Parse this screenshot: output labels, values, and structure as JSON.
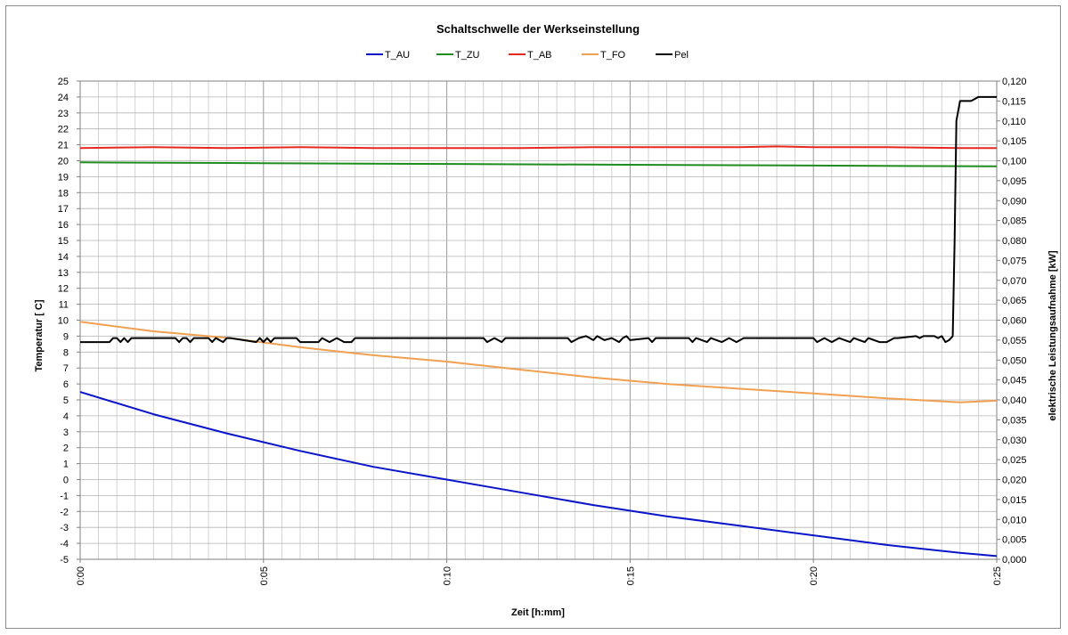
{
  "chart_data": {
    "type": "line",
    "title": "Schaltschwelle der Werkseinstellung",
    "xlabel": "Zeit [h:mm]",
    "ylabel": "Temperatur [ C]",
    "y2label": "elektrische Leistungsaufnahme  [kW]",
    "x_ticks": [
      "0:00",
      "0:05",
      "0:10",
      "0:15",
      "0:20",
      "0:25"
    ],
    "xlim_min": [
      0,
      25
    ],
    "ylim": [
      -5,
      25
    ],
    "y_ticks": [
      "-5",
      "-4",
      "-3",
      "-2",
      "-1",
      "0",
      "1",
      "2",
      "3",
      "4",
      "5",
      "6",
      "7",
      "8",
      "9",
      "10",
      "11",
      "12",
      "13",
      "14",
      "15",
      "16",
      "17",
      "18",
      "19",
      "20",
      "21",
      "22",
      "23",
      "24",
      "25"
    ],
    "y2lim": [
      0,
      0.12
    ],
    "y2_ticks": [
      "0,000",
      "0,005",
      "0,010",
      "0,015",
      "0,020",
      "0,025",
      "0,030",
      "0,035",
      "0,040",
      "0,045",
      "0,050",
      "0,055",
      "0,060",
      "0,065",
      "0,070",
      "0,075",
      "0,080",
      "0,085",
      "0,090",
      "0,095",
      "0,100",
      "0,105",
      "0,110",
      "0,115",
      "0,120"
    ],
    "grid": true,
    "legend_position": "top",
    "series": [
      {
        "name": "T_AU",
        "color": "#0a14c8",
        "axis": "left",
        "x": [
          0,
          2,
          4,
          6,
          8,
          10,
          12,
          14,
          16,
          18,
          20,
          22,
          24,
          25
        ],
        "y": [
          5.5,
          4.1,
          2.9,
          1.8,
          0.8,
          0.0,
          -0.8,
          -1.6,
          -2.3,
          -2.9,
          -3.5,
          -4.1,
          -4.6,
          -4.8
        ]
      },
      {
        "name": "T_ZU",
        "color": "#1e8c1e",
        "axis": "left",
        "x": [
          0,
          5,
          10,
          15,
          20,
          25
        ],
        "y": [
          19.9,
          19.85,
          19.8,
          19.75,
          19.7,
          19.65
        ]
      },
      {
        "name": "T_AB",
        "color": "#e6281e",
        "axis": "left",
        "x": [
          0,
          2,
          4,
          6,
          8,
          10,
          12,
          14,
          16,
          18,
          19,
          20,
          22,
          24,
          25
        ],
        "y": [
          20.8,
          20.85,
          20.8,
          20.85,
          20.8,
          20.8,
          20.8,
          20.85,
          20.85,
          20.85,
          20.9,
          20.85,
          20.85,
          20.8,
          20.8
        ]
      },
      {
        "name": "T_FO",
        "color": "#f0a050",
        "axis": "left",
        "x": [
          0,
          2,
          4,
          6,
          8,
          10,
          12,
          14,
          16,
          18,
          20,
          22,
          24,
          25
        ],
        "y": [
          9.9,
          9.3,
          8.9,
          8.3,
          7.8,
          7.4,
          6.9,
          6.4,
          6.0,
          5.7,
          5.4,
          5.1,
          4.85,
          4.95
        ]
      },
      {
        "name": "Pel",
        "color": "#000000",
        "axis": "right",
        "x": [
          0,
          0.8,
          0.9,
          1.0,
          1.1,
          1.2,
          1.3,
          1.4,
          2.6,
          2.7,
          2.8,
          2.9,
          3.0,
          3.1,
          3.5,
          3.6,
          3.7,
          3.9,
          4.0,
          4.1,
          4.8,
          4.9,
          5.0,
          5.1,
          5.2,
          5.3,
          5.9,
          6.0,
          6.5,
          6.6,
          6.8,
          7.0,
          7.2,
          7.4,
          7.5,
          11.0,
          11.1,
          11.3,
          11.5,
          11.6,
          13.3,
          13.4,
          13.6,
          13.8,
          14.0,
          14.1,
          14.3,
          14.5,
          14.7,
          14.8,
          14.9,
          15.0,
          15.5,
          15.6,
          15.7,
          16.6,
          16.7,
          16.8,
          17.1,
          17.2,
          17.5,
          17.7,
          17.9,
          18.1,
          18.3,
          20.0,
          20.1,
          20.3,
          20.5,
          20.7,
          21.0,
          21.1,
          21.4,
          21.5,
          21.8,
          22.0,
          22.2,
          22.3,
          22.8,
          22.9,
          23.0,
          23.3,
          23.4,
          23.5,
          23.6,
          23.7,
          23.8,
          23.85,
          23.9,
          24.0,
          24.1,
          24.2,
          24.3,
          24.5,
          24.6,
          25.0
        ],
        "y": [
          0.0545,
          0.0545,
          0.0555,
          0.0555,
          0.0545,
          0.0555,
          0.0545,
          0.0555,
          0.0555,
          0.0545,
          0.0555,
          0.0555,
          0.0545,
          0.0555,
          0.0555,
          0.0545,
          0.0555,
          0.0545,
          0.0555,
          0.0555,
          0.0545,
          0.0555,
          0.0545,
          0.0555,
          0.0545,
          0.0555,
          0.0555,
          0.0545,
          0.0545,
          0.0555,
          0.0545,
          0.0555,
          0.0545,
          0.0545,
          0.0555,
          0.0555,
          0.0545,
          0.0555,
          0.0545,
          0.0555,
          0.0555,
          0.0545,
          0.0555,
          0.056,
          0.055,
          0.056,
          0.055,
          0.0555,
          0.0545,
          0.0555,
          0.056,
          0.055,
          0.0555,
          0.0545,
          0.0555,
          0.0555,
          0.0545,
          0.0555,
          0.0545,
          0.0555,
          0.0545,
          0.0555,
          0.0545,
          0.0555,
          0.0555,
          0.0555,
          0.0545,
          0.0555,
          0.0545,
          0.0555,
          0.0545,
          0.0555,
          0.0545,
          0.0555,
          0.0545,
          0.0545,
          0.0555,
          0.0555,
          0.056,
          0.0555,
          0.056,
          0.056,
          0.0555,
          0.056,
          0.0545,
          0.055,
          0.056,
          0.08,
          0.11,
          0.115,
          0.115,
          0.115,
          0.115,
          0.116,
          0.116,
          0.116
        ]
      }
    ]
  }
}
